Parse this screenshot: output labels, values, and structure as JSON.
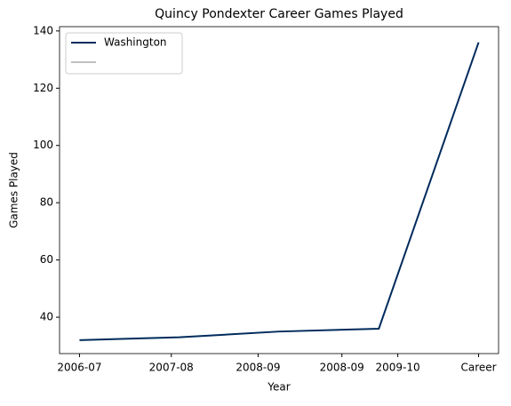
{
  "chart_data": {
    "type": "line",
    "title": "Quincy Pondexter Career Games Played",
    "xlabel": "Year",
    "ylabel": "Games Played",
    "x": [
      0,
      1,
      2,
      3,
      4
    ],
    "series": [
      {
        "name": "Washington",
        "color": "#002B5C",
        "values": [
          32,
          33,
          35,
          36,
          136
        ]
      }
    ],
    "xlim": [
      -0.2,
      4.2
    ],
    "xticks": [
      {
        "value": 0,
        "label": "2006-07"
      },
      {
        "value": 0.92,
        "label": "2007-08"
      },
      {
        "value": 1.79,
        "label": "2008-09"
      },
      {
        "value": 2.63,
        "label": "2008-09"
      },
      {
        "value": 3.19,
        "label": "2009-10"
      },
      {
        "value": 4,
        "label": "Career"
      }
    ],
    "ylim": [
      27.3,
      141.5
    ],
    "yticks": [
      40,
      60,
      80,
      100,
      120,
      140
    ],
    "legend": "upper left"
  }
}
